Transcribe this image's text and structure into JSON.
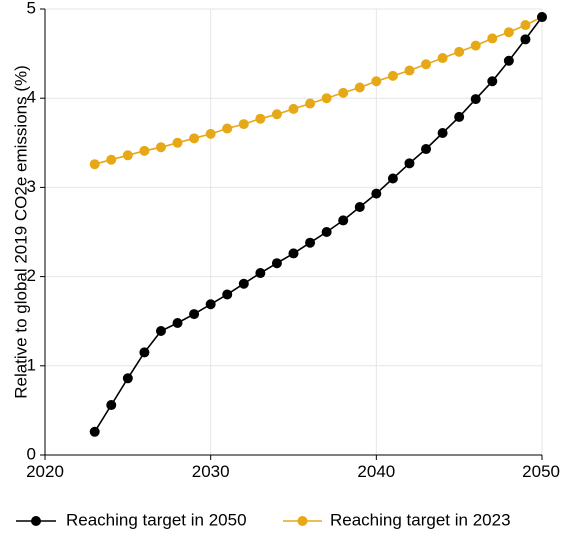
{
  "chart_data": {
    "type": "line",
    "title": "",
    "xlabel": "",
    "ylabel": "Relative to global 2019 CO2e emissions (%)",
    "xlim": [
      2020,
      2050
    ],
    "ylim": [
      0,
      5
    ],
    "x_ticks": [
      2020,
      2030,
      2040,
      2050
    ],
    "y_ticks": [
      0,
      1,
      2,
      3,
      4,
      5
    ],
    "x_tick_labels": [
      "2020",
      "2030",
      "2040",
      "2050"
    ],
    "y_tick_labels": [
      "0",
      "1",
      "2",
      "3",
      "4",
      "5"
    ],
    "grid": true,
    "legend_position": "bottom",
    "series": [
      {
        "name": "Reaching target in 2050",
        "color": "#000000",
        "x": [
          2023,
          2024,
          2025,
          2026,
          2027,
          2028,
          2029,
          2030,
          2031,
          2032,
          2033,
          2034,
          2035,
          2036,
          2037,
          2038,
          2039,
          2040,
          2041,
          2042,
          2043,
          2044,
          2045,
          2046,
          2047,
          2048,
          2049,
          2050
        ],
        "y": [
          0.26,
          0.56,
          0.86,
          1.15,
          1.39,
          1.48,
          1.58,
          1.69,
          1.8,
          1.92,
          2.04,
          2.15,
          2.26,
          2.38,
          2.5,
          2.63,
          2.78,
          2.93,
          3.1,
          3.27,
          3.43,
          3.61,
          3.79,
          3.99,
          4.19,
          4.42,
          4.66,
          4.91
        ]
      },
      {
        "name": "Reaching target in 2023",
        "color": "#E6A817",
        "x": [
          2023,
          2024,
          2025,
          2026,
          2027,
          2028,
          2029,
          2030,
          2031,
          2032,
          2033,
          2034,
          2035,
          2036,
          2037,
          2038,
          2039,
          2040,
          2041,
          2042,
          2043,
          2044,
          2045,
          2046,
          2047,
          2048,
          2049,
          2050
        ],
        "y": [
          3.26,
          3.31,
          3.36,
          3.41,
          3.45,
          3.5,
          3.55,
          3.6,
          3.66,
          3.71,
          3.77,
          3.82,
          3.88,
          3.94,
          4.0,
          4.06,
          4.12,
          4.19,
          4.25,
          4.31,
          4.38,
          4.45,
          4.52,
          4.59,
          4.67,
          4.74,
          4.82,
          4.91
        ]
      }
    ]
  }
}
